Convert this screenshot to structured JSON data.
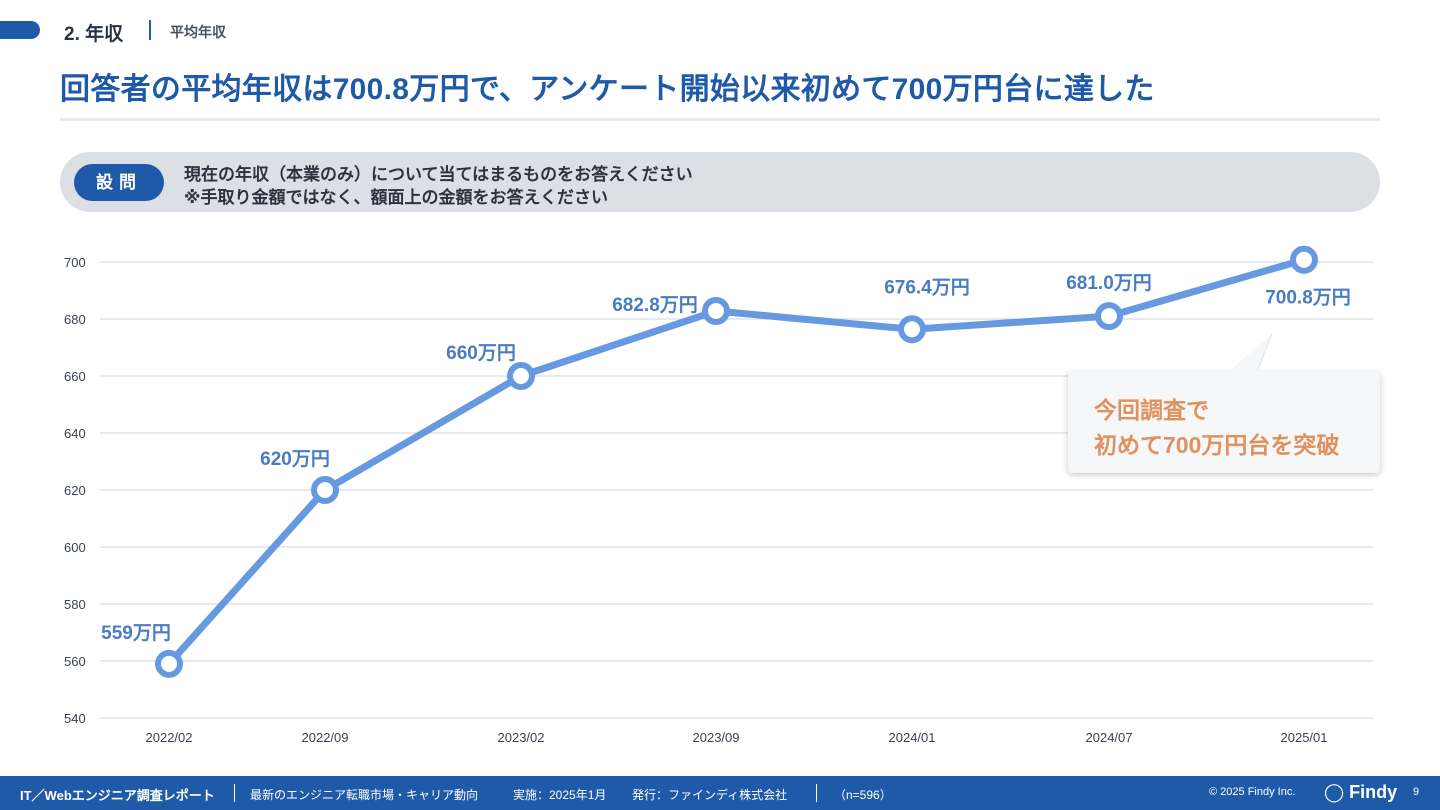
{
  "section": {
    "number": "2. 年収",
    "subtitle": "平均年収"
  },
  "headline": "回答者の平均年収は700.8万円で、アンケート開始以来初めて700万円台に達した",
  "question": {
    "badge": "設問",
    "line1": "現在の年収（本業のみ）について当てはまるものをお答えください",
    "line2": "※手取り金額ではなく、額面上の金額をお答えください"
  },
  "chart_data": {
    "type": "line",
    "title": "",
    "xlabel": "",
    "ylabel": "",
    "categories": [
      "2022/02",
      "2022/09",
      "2023/02",
      "2023/09",
      "2024/01",
      "2024/07",
      "2025/01"
    ],
    "values": [
      559,
      620,
      660,
      682.8,
      676.4,
      681.0,
      700.8
    ],
    "data_labels": [
      "559万円",
      "620万円",
      "660万円",
      "682.8万円",
      "676.4万円",
      "681.0万円",
      "700.8万円"
    ],
    "ylim": [
      540,
      700
    ],
    "yticks": [
      540,
      560,
      580,
      600,
      620,
      640,
      660,
      680,
      700
    ],
    "grid": true,
    "colors": {
      "line": "#6699e0",
      "label": "#4a7cc4",
      "grid": "#cfd3d9"
    }
  },
  "callout": {
    "line1": "今回調査で",
    "line2": "初めて700万円台を突破",
    "color": "#e0915e"
  },
  "footer": {
    "title": "IT／Webエンジニア調査レポート",
    "desc": "最新のエンジニア転職市場・キャリア動向",
    "period": "実施：2025年1月",
    "publisher": "発行：ファインディ株式会社",
    "sample": "（n=596）",
    "copyright": "© 2025 Findy Inc.",
    "logo": "Findy",
    "page": "9"
  },
  "colors": {
    "brand": "#1f5aa8",
    "question_bg": "#dcdfe5"
  }
}
